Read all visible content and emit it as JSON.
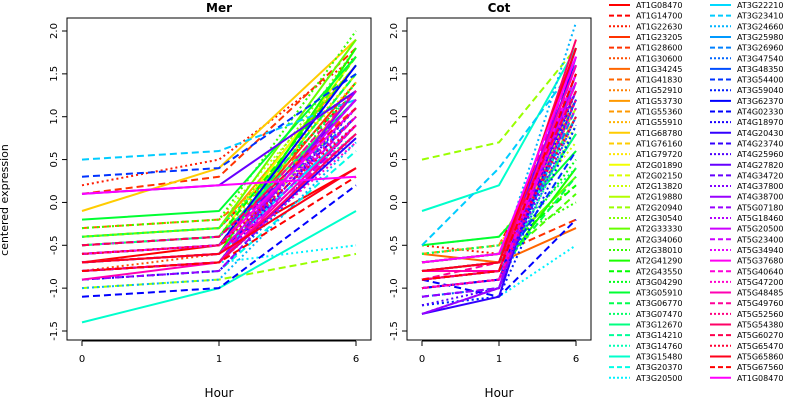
{
  "chart_data": {
    "type": "line",
    "ylabel": "centered expression",
    "xlabel": "Hour",
    "x": [
      "0",
      "1",
      "6"
    ],
    "ylim": [
      -1.5,
      2.0
    ],
    "yticks": [
      "-1.5",
      "-1.0",
      "-0.5",
      "0.0",
      "0.5",
      "1.0",
      "1.5",
      "2.0"
    ],
    "panels": [
      {
        "title": "Mer"
      },
      {
        "title": "Cot"
      }
    ],
    "legend_position": "right",
    "series": [
      {
        "name": "AT1G08470",
        "color": "#FF0000",
        "dash": "solid",
        "mer": [
          -0.7,
          -0.5,
          0.4
        ],
        "cot": [
          -0.8,
          -0.7,
          1.6
        ]
      },
      {
        "name": "AT1G14700",
        "color": "#FF0000",
        "dash": "dashed",
        "mer": [
          -0.4,
          -0.3,
          1.3
        ],
        "cot": [
          -0.6,
          -0.5,
          1.2
        ]
      },
      {
        "name": "AT1G22630",
        "color": "#FF1A00",
        "dash": "dotted",
        "mer": [
          0.2,
          0.5,
          1.7
        ],
        "cot": [
          -0.5,
          -0.6,
          1.0
        ]
      },
      {
        "name": "AT1G23205",
        "color": "#FF3300",
        "dash": "solid",
        "mer": [
          -0.6,
          -0.5,
          1.4
        ],
        "cot": [
          -0.9,
          -0.8,
          1.5
        ]
      },
      {
        "name": "AT1G28600",
        "color": "#FF3300",
        "dash": "dashed",
        "mer": [
          0.1,
          0.3,
          1.8
        ],
        "cot": [
          -0.7,
          -0.6,
          -0.2
        ]
      },
      {
        "name": "AT1G30600",
        "color": "#FF4D00",
        "dash": "dotted",
        "mer": [
          -0.8,
          -0.6,
          0.9
        ],
        "cot": [
          -1.0,
          -0.9,
          0.9
        ]
      },
      {
        "name": "AT1G34245",
        "color": "#FF6600",
        "dash": "solid",
        "mer": [
          -0.5,
          -0.4,
          1.2
        ],
        "cot": [
          -0.6,
          -0.7,
          -0.3
        ]
      },
      {
        "name": "AT1G41830",
        "color": "#FF6600",
        "dash": "dashed",
        "mer": [
          -0.3,
          -0.2,
          1.1
        ],
        "cot": [
          -0.8,
          -0.7,
          1.3
        ]
      },
      {
        "name": "AT1G52910",
        "color": "#FF8000",
        "dash": "dotted",
        "mer": [
          -0.6,
          -0.5,
          1.0
        ],
        "cot": [
          -0.7,
          -0.6,
          1.1
        ]
      },
      {
        "name": "AT1G53730",
        "color": "#FF9900",
        "dash": "solid",
        "mer": [
          -0.4,
          -0.3,
          1.6
        ],
        "cot": [
          -0.9,
          -0.8,
          1.4
        ]
      },
      {
        "name": "AT1G55360",
        "color": "#FF9900",
        "dash": "dashed",
        "mer": [
          -0.7,
          -0.6,
          1.3
        ],
        "cot": [
          -0.6,
          -0.5,
          0.8
        ]
      },
      {
        "name": "AT1G55910",
        "color": "#FFB300",
        "dash": "dotted",
        "mer": [
          -0.5,
          -0.4,
          1.5
        ],
        "cot": [
          -0.8,
          -0.7,
          1.2
        ]
      },
      {
        "name": "AT1G68780",
        "color": "#FFCC00",
        "dash": "solid",
        "mer": [
          -0.1,
          0.4,
          1.9
        ],
        "cot": [
          -0.7,
          -0.6,
          1.0
        ]
      },
      {
        "name": "AT1G76160",
        "color": "#FFCC00",
        "dash": "dashed",
        "mer": [
          -0.6,
          -0.5,
          1.2
        ],
        "cot": [
          -1.0,
          -0.9,
          1.3
        ]
      },
      {
        "name": "AT1G79720",
        "color": "#FFE600",
        "dash": "dotted",
        "mer": [
          -0.4,
          -0.3,
          1.4
        ],
        "cot": [
          -0.6,
          -0.5,
          0.9
        ]
      },
      {
        "name": "AT2G01890",
        "color": "#F2FF00",
        "dash": "solid",
        "mer": [
          -0.5,
          -0.4,
          1.7
        ],
        "cot": [
          -0.8,
          -0.7,
          1.4
        ]
      },
      {
        "name": "AT2G02150",
        "color": "#D9FF00",
        "dash": "dashed",
        "mer": [
          -0.7,
          -0.6,
          1.1
        ],
        "cot": [
          -0.9,
          -0.8,
          1.2
        ]
      },
      {
        "name": "AT2G13820",
        "color": "#CCFF00",
        "dash": "dotted",
        "mer": [
          -0.3,
          -0.2,
          1.6
        ],
        "cot": [
          -0.5,
          -0.4,
          0.7
        ]
      },
      {
        "name": "AT2G19880",
        "color": "#B3FF00",
        "dash": "solid",
        "mer": [
          -0.6,
          -0.5,
          1.5
        ],
        "cot": [
          -0.7,
          -0.6,
          1.1
        ]
      },
      {
        "name": "AT2G20940",
        "color": "#99FF00",
        "dash": "dashed",
        "mer": [
          -1.0,
          -0.9,
          -0.6
        ],
        "cot": [
          0.5,
          0.7,
          1.8
        ]
      },
      {
        "name": "AT2G30540",
        "color": "#80FF00",
        "dash": "dotted",
        "mer": [
          -0.5,
          -0.4,
          1.8
        ],
        "cot": [
          -0.6,
          -0.5,
          0.2
        ]
      },
      {
        "name": "AT2G33330",
        "color": "#66FF00",
        "dash": "solid",
        "mer": [
          -0.4,
          -0.3,
          1.9
        ],
        "cot": [
          -0.7,
          -0.6,
          0.3
        ]
      },
      {
        "name": "AT2G34060",
        "color": "#4DFF00",
        "dash": "dashed",
        "mer": [
          -0.6,
          -0.5,
          1.7
        ],
        "cot": [
          -0.8,
          -0.7,
          0.1
        ]
      },
      {
        "name": "AT2G38010",
        "color": "#33FF00",
        "dash": "dotted",
        "mer": [
          -0.3,
          -0.2,
          2.0
        ],
        "cot": [
          -0.6,
          -0.5,
          0.0
        ]
      },
      {
        "name": "AT2G41290",
        "color": "#1AFF00",
        "dash": "solid",
        "mer": [
          -0.7,
          -0.6,
          1.8
        ],
        "cot": [
          -0.9,
          -0.8,
          0.4
        ]
      },
      {
        "name": "AT2G43550",
        "color": "#00FF00",
        "dash": "dashed",
        "mer": [
          -0.5,
          -0.4,
          1.6
        ],
        "cot": [
          -0.7,
          -0.6,
          0.2
        ]
      },
      {
        "name": "AT3G04290",
        "color": "#00FF1A",
        "dash": "dotted",
        "mer": [
          -0.8,
          -0.7,
          1.4
        ],
        "cot": [
          -0.8,
          -0.7,
          0.5
        ]
      },
      {
        "name": "AT3G05910",
        "color": "#00FF33",
        "dash": "solid",
        "mer": [
          -0.2,
          -0.1,
          1.7
        ],
        "cot": [
          -0.5,
          -0.4,
          0.6
        ]
      },
      {
        "name": "AT3G06770",
        "color": "#00FF4D",
        "dash": "dashed",
        "mer": [
          -0.6,
          -0.5,
          1.5
        ],
        "cot": [
          -0.9,
          -0.8,
          0.3
        ]
      },
      {
        "name": "AT3G07470",
        "color": "#00FF66",
        "dash": "dotted",
        "mer": [
          -0.4,
          -0.3,
          1.3
        ],
        "cot": [
          -0.6,
          -0.5,
          0.4
        ]
      },
      {
        "name": "AT3G12670",
        "color": "#00FF80",
        "dash": "solid",
        "mer": [
          -0.5,
          -0.4,
          1.2
        ],
        "cot": [
          -0.7,
          -0.6,
          0.8
        ]
      },
      {
        "name": "AT3G14210",
        "color": "#00FF99",
        "dash": "dashed",
        "mer": [
          -0.7,
          -0.6,
          1.0
        ],
        "cot": [
          -0.8,
          -0.7,
          1.0
        ]
      },
      {
        "name": "AT3G14760",
        "color": "#00FFB3",
        "dash": "dotted",
        "mer": [
          -0.6,
          -0.5,
          0.8
        ],
        "cot": [
          -1.0,
          -0.9,
          0.9
        ]
      },
      {
        "name": "AT3G15480",
        "color": "#00FFCC",
        "dash": "solid",
        "mer": [
          -1.4,
          -1.0,
          -0.1
        ],
        "cot": [
          -0.1,
          0.2,
          1.8
        ]
      },
      {
        "name": "AT3G20370",
        "color": "#00FFE6",
        "dash": "dashed",
        "mer": [
          -0.9,
          -0.8,
          0.6
        ],
        "cot": [
          -1.1,
          -1.0,
          1.2
        ]
      },
      {
        "name": "AT3G20500",
        "color": "#00F2FF",
        "dash": "dotted",
        "mer": [
          -0.8,
          -0.7,
          -0.5
        ],
        "cot": [
          -1.2,
          -1.1,
          -0.5
        ]
      },
      {
        "name": "AT3G22210",
        "color": "#00D9FF",
        "dash": "solid",
        "mer": [
          -0.7,
          -0.6,
          0.9
        ],
        "cot": [
          -0.9,
          -0.8,
          1.3
        ]
      },
      {
        "name": "AT3G23410",
        "color": "#00CCFF",
        "dash": "dashed",
        "mer": [
          0.5,
          0.6,
          1.2
        ],
        "cot": [
          -0.5,
          0.4,
          1.6
        ]
      },
      {
        "name": "AT3G24660",
        "color": "#00B3FF",
        "dash": "dotted",
        "mer": [
          -1.0,
          -0.9,
          0.7
        ],
        "cot": [
          -0.8,
          -0.7,
          2.1
        ]
      },
      {
        "name": "AT3G25980",
        "color": "#0099FF",
        "dash": "solid",
        "mer": [
          -0.6,
          -0.5,
          1.1
        ],
        "cot": [
          -0.7,
          -0.6,
          1.4
        ]
      },
      {
        "name": "AT3G26960",
        "color": "#0080FF",
        "dash": "dashed",
        "mer": [
          -0.5,
          -0.4,
          1.0
        ],
        "cot": [
          -1.0,
          -0.9,
          1.1
        ]
      },
      {
        "name": "AT3G47540",
        "color": "#0066FF",
        "dash": "dotted",
        "mer": [
          -0.9,
          -0.8,
          0.8
        ],
        "cot": [
          -1.1,
          -1.0,
          1.0
        ]
      },
      {
        "name": "AT3G48350",
        "color": "#004DFF",
        "dash": "solid",
        "mer": [
          -0.8,
          -0.7,
          1.3
        ],
        "cot": [
          -1.0,
          -0.9,
          1.2
        ]
      },
      {
        "name": "AT3G54400",
        "color": "#0033FF",
        "dash": "dashed",
        "mer": [
          0.3,
          0.4,
          1.5
        ],
        "cot": [
          -0.9,
          -0.8,
          0.6
        ]
      },
      {
        "name": "AT3G59040",
        "color": "#001AFF",
        "dash": "dotted",
        "mer": [
          -0.7,
          -0.6,
          1.2
        ],
        "cot": [
          -1.2,
          -1.1,
          0.9
        ]
      },
      {
        "name": "AT3G62370",
        "color": "#0000FF",
        "dash": "solid",
        "mer": [
          -0.6,
          -0.5,
          1.6
        ],
        "cot": [
          -1.0,
          -0.9,
          1.5
        ]
      },
      {
        "name": "AT4G02330",
        "color": "#0000FF",
        "dash": "dashed",
        "mer": [
          -1.1,
          -1.0,
          0.2
        ],
        "cot": [
          -0.9,
          -1.1,
          -0.2
        ]
      },
      {
        "name": "AT4G18970",
        "color": "#1A00FF",
        "dash": "dotted",
        "mer": [
          -0.9,
          -0.8,
          0.9
        ],
        "cot": [
          -1.3,
          -1.0,
          1.3
        ]
      },
      {
        "name": "AT4G20430",
        "color": "#3300FF",
        "dash": "solid",
        "mer": [
          -0.8,
          -0.7,
          0.75
        ],
        "cot": [
          -1.3,
          -1.1,
          1.7
        ]
      },
      {
        "name": "AT4G23740",
        "color": "#3300FF",
        "dash": "dashed",
        "mer": [
          -0.7,
          -0.6,
          1.0
        ],
        "cot": [
          -1.1,
          -1.0,
          1.4
        ]
      },
      {
        "name": "AT4G25960",
        "color": "#4D00FF",
        "dash": "dotted",
        "mer": [
          -0.8,
          -0.7,
          1.1
        ],
        "cot": [
          -1.2,
          -1.0,
          1.2
        ]
      },
      {
        "name": "AT4G27820",
        "color": "#6600FF",
        "dash": "solid",
        "mer": [
          0.1,
          0.2,
          1.3
        ],
        "cot": [
          -0.8,
          -0.7,
          1.6
        ]
      },
      {
        "name": "AT4G34720",
        "color": "#6600FF",
        "dash": "dashed",
        "mer": [
          -0.6,
          -0.5,
          1.2
        ],
        "cot": [
          -0.9,
          -0.8,
          1.3
        ]
      },
      {
        "name": "AT4G37800",
        "color": "#8000FF",
        "dash": "dotted",
        "mer": [
          -0.7,
          -0.6,
          1.1
        ],
        "cot": [
          -1.0,
          -0.9,
          1.0
        ]
      },
      {
        "name": "AT4G38700",
        "color": "#9900FF",
        "dash": "solid",
        "mer": [
          -0.8,
          -0.7,
          1.3
        ],
        "cot": [
          -1.3,
          -1.0,
          1.8
        ]
      },
      {
        "name": "AT5G07180",
        "color": "#9900FF",
        "dash": "dashed",
        "mer": [
          -0.9,
          -0.8,
          0.9
        ],
        "cot": [
          -1.1,
          -1.0,
          1.5
        ]
      },
      {
        "name": "AT5G18460",
        "color": "#B300FF",
        "dash": "dotted",
        "mer": [
          -0.6,
          -0.5,
          1.0
        ],
        "cot": [
          -1.0,
          -0.9,
          1.2
        ]
      },
      {
        "name": "AT5G20500",
        "color": "#CC00FF",
        "dash": "solid",
        "mer": [
          -0.7,
          -0.6,
          1.2
        ],
        "cot": [
          -0.9,
          -0.8,
          1.4
        ]
      },
      {
        "name": "AT5G23400",
        "color": "#CC00FF",
        "dash": "dashed",
        "mer": [
          -0.8,
          -0.7,
          1.0
        ],
        "cot": [
          -1.0,
          -0.9,
          1.6
        ]
      },
      {
        "name": "AT5G34940",
        "color": "#E600FF",
        "dash": "dotted",
        "mer": [
          -0.5,
          -0.4,
          0.9
        ],
        "cot": [
          -0.8,
          -0.7,
          1.3
        ]
      },
      {
        "name": "AT5G37680",
        "color": "#FF00F2",
        "dash": "solid",
        "mer": [
          -0.6,
          -0.5,
          1.1
        ],
        "cot": [
          -0.9,
          -0.8,
          1.5
        ]
      },
      {
        "name": "AT5G40640",
        "color": "#FF00D9",
        "dash": "dashed",
        "mer": [
          -0.7,
          -0.6,
          0.8
        ],
        "cot": [
          -1.0,
          -0.9,
          1.4
        ]
      },
      {
        "name": "AT5G47200",
        "color": "#FF00CC",
        "dash": "dotted",
        "mer": [
          -0.8,
          -0.7,
          0.7
        ],
        "cot": [
          -0.7,
          -0.6,
          1.1
        ]
      },
      {
        "name": "AT5G48485",
        "color": "#FF00B3",
        "dash": "solid",
        "mer": [
          -0.9,
          -0.7,
          0.9
        ],
        "cot": [
          -0.8,
          -0.8,
          1.6
        ]
      },
      {
        "name": "AT5G49760",
        "color": "#FF0099",
        "dash": "dashed",
        "mer": [
          -0.6,
          -0.5,
          1.3
        ],
        "cot": [
          -0.9,
          -0.7,
          1.7
        ]
      },
      {
        "name": "AT5G52560",
        "color": "#FF0080",
        "dash": "dotted",
        "mer": [
          -0.7,
          -0.6,
          1.0
        ],
        "cot": [
          -1.0,
          -0.9,
          1.2
        ]
      },
      {
        "name": "AT5G54380",
        "color": "#FF0066",
        "dash": "solid",
        "mer": [
          -0.8,
          -0.7,
          0.8
        ],
        "cot": [
          -0.9,
          -0.8,
          1.9
        ]
      },
      {
        "name": "AT5G60270",
        "color": "#FF004D",
        "dash": "dashed",
        "mer": [
          -0.5,
          -0.4,
          1.1
        ],
        "cot": [
          -0.7,
          -0.6,
          1.3
        ]
      },
      {
        "name": "AT5G65470",
        "color": "#FF0033",
        "dash": "dotted",
        "mer": [
          -0.6,
          -0.5,
          0.9
        ],
        "cot": [
          -0.8,
          -0.7,
          1.0
        ]
      },
      {
        "name": "AT5G65860",
        "color": "#FF001A",
        "dash": "solid",
        "mer": [
          -0.7,
          -0.6,
          0.4
        ],
        "cot": [
          -0.8,
          -0.7,
          1.8
        ]
      },
      {
        "name": "AT5G67560",
        "color": "#FF0000",
        "dash": "dashed",
        "mer": [
          -0.8,
          -0.7,
          0.3
        ],
        "cot": [
          -0.9,
          -0.8,
          1.5
        ]
      },
      {
        "name": "AT1G08470",
        "color": "#FF00FF",
        "dash": "solid",
        "mer": [
          0.1,
          0.2,
          0.3
        ],
        "cot": [
          -0.7,
          -0.6,
          1.7
        ]
      }
    ]
  }
}
